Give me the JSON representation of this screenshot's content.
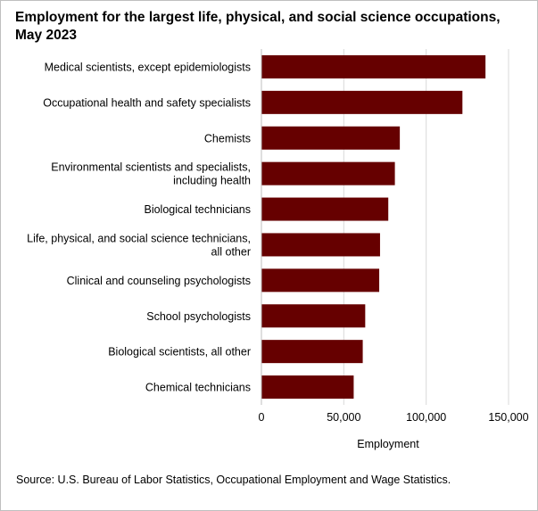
{
  "chart_data": {
    "type": "bar",
    "orientation": "horizontal",
    "title": "Employment for the largest life, physical, and social science occupations, May 2023",
    "xlabel": "Employment",
    "ylabel": "",
    "xlim": [
      0,
      150000
    ],
    "x_ticks": [
      0,
      50000,
      100000,
      150000
    ],
    "x_tick_labels": [
      "0",
      "50,000",
      "100,000",
      "150,000"
    ],
    "grid": true,
    "legend": "none",
    "bar_color": "#660000",
    "categories": [
      [
        "Medical scientists, except epidemiologists"
      ],
      [
        "Occupational health and safety specialists"
      ],
      [
        "Chemists"
      ],
      [
        "Environmental scientists and specialists,",
        "including health"
      ],
      [
        "Biological technicians"
      ],
      [
        "Life, physical, and social science technicians,",
        "all other"
      ],
      [
        "Clinical and counseling psychologists"
      ],
      [
        "School psychologists"
      ],
      [
        "Biological scientists, all other"
      ],
      [
        "Chemical technicians"
      ]
    ],
    "values": [
      136000,
      122000,
      84000,
      81000,
      77000,
      72000,
      71500,
      63000,
      61500,
      56000
    ]
  },
  "source": "Source: U.S. Bureau of Labor Statistics, Occupational Employment and Wage Statistics."
}
